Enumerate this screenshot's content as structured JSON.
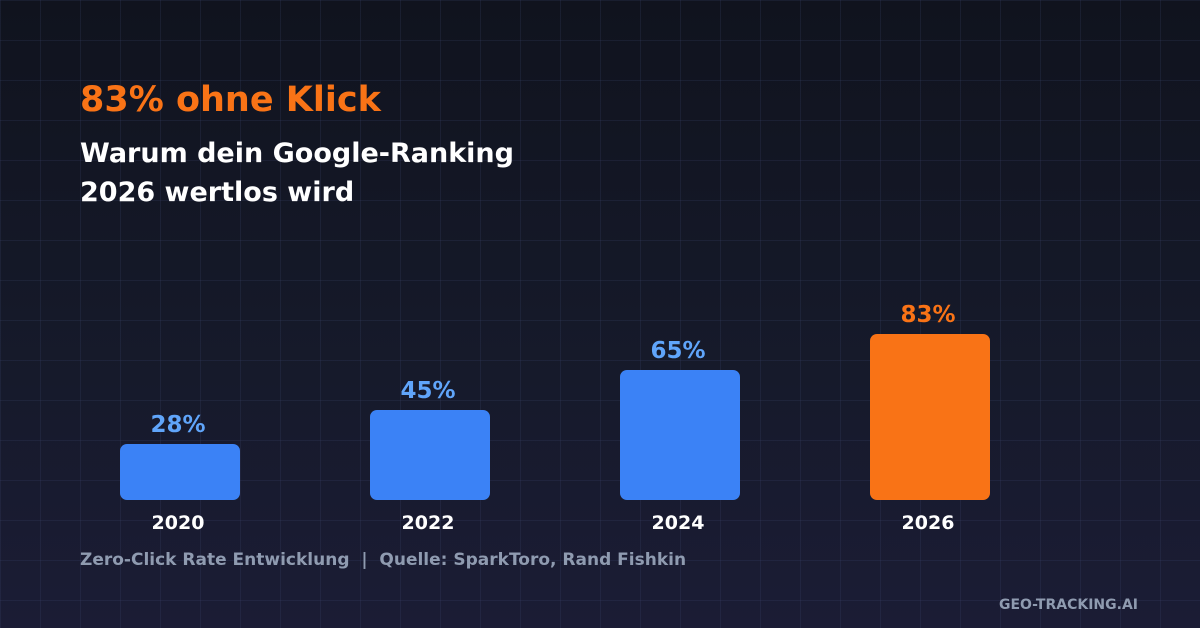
{
  "title": "83% ohne Klick",
  "subtitle_lines": [
    "Warum dein Google-Ranking",
    "2026 wertlos wird"
  ],
  "caption": "Zero-Click Rate Entwicklung  |  Quelle: SparkToro, Rand Fishkin",
  "brand": "GEO-TRACKING.AI",
  "colors": {
    "accent": "#f97316",
    "bar": "#3b82f6",
    "bar_label": "#60a5fa",
    "highlight": "#f97316"
  },
  "chart_data": {
    "type": "bar",
    "categories": [
      "2020",
      "2022",
      "2024",
      "2026"
    ],
    "values": [
      28,
      45,
      65,
      83
    ],
    "data_labels": [
      "28%",
      "45%",
      "65%",
      "83%"
    ],
    "highlight_index": 3,
    "ylim": [
      0,
      100
    ],
    "grid": false
  }
}
